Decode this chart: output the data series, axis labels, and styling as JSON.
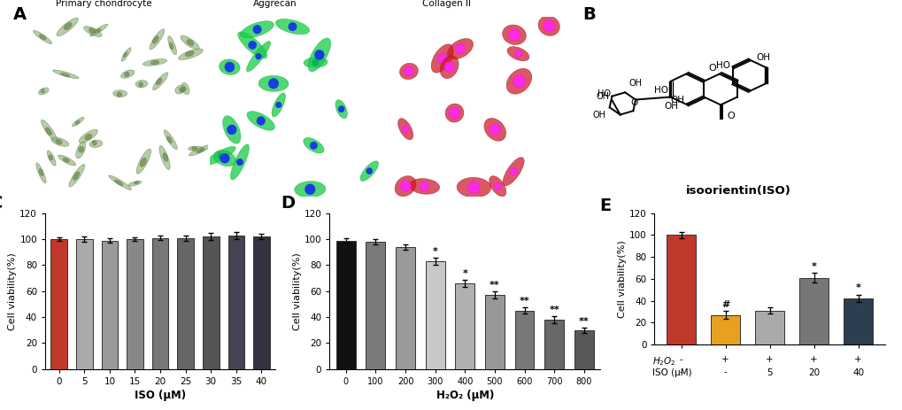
{
  "panel_C": {
    "categories": [
      "0",
      "5",
      "10",
      "15",
      "20",
      "25",
      "30",
      "35",
      "40"
    ],
    "values": [
      100,
      100,
      99,
      100,
      101,
      101,
      102,
      103,
      102
    ],
    "errors": [
      1.5,
      1.8,
      2.0,
      1.5,
      1.8,
      2.0,
      2.5,
      2.8,
      2.2
    ],
    "colors": [
      "#C0392B",
      "#AAAAAA",
      "#9A9A9A",
      "#888888",
      "#777777",
      "#666666",
      "#555555",
      "#444455",
      "#333344"
    ],
    "xlabel": "ISO (μM)",
    "ylabel": "Cell viability(%)",
    "ylim": [
      0,
      120
    ],
    "yticks": [
      0,
      20,
      40,
      60,
      80,
      100,
      120
    ],
    "label": "C"
  },
  "panel_D": {
    "categories": [
      "0",
      "100",
      "200",
      "300",
      "400",
      "500",
      "600",
      "700",
      "800"
    ],
    "values": [
      99,
      98,
      94,
      83,
      66,
      57,
      45,
      38,
      30
    ],
    "errors": [
      1.5,
      1.8,
      2.2,
      2.5,
      2.8,
      2.5,
      2.5,
      2.8,
      2.0
    ],
    "colors": [
      "#111111",
      "#7a7a7a",
      "#9a9a9a",
      "#c8c8c8",
      "#b0b0b0",
      "#989898",
      "#787878",
      "#686868",
      "#585858"
    ],
    "sig_labels": [
      "",
      "",
      "",
      "*",
      "*",
      "**",
      "**",
      "**",
      "**"
    ],
    "xlabel": "H₂O₂ (μM)",
    "ylabel": "Cell viability(%)",
    "ylim": [
      0,
      120
    ],
    "yticks": [
      0,
      20,
      40,
      60,
      80,
      100,
      120
    ],
    "label": "D"
  },
  "panel_E": {
    "values": [
      100,
      27,
      31,
      61,
      42
    ],
    "errors": [
      2.5,
      3.5,
      3.0,
      4.5,
      3.5
    ],
    "colors": [
      "#C0392B",
      "#E8A020",
      "#AAAAAA",
      "#777777",
      "#2C3E50"
    ],
    "sig_labels": [
      "",
      "#",
      "",
      "*",
      "*"
    ],
    "h2o2_labels": [
      "-",
      "+",
      "+",
      "+",
      "+"
    ],
    "iso_labels": [
      "-",
      "-",
      "5",
      "20",
      "40"
    ],
    "ylabel": "Cell viability(%)",
    "ylim": [
      0,
      120
    ],
    "yticks": [
      0,
      20,
      40,
      60,
      80,
      100,
      120
    ],
    "label": "E"
  }
}
